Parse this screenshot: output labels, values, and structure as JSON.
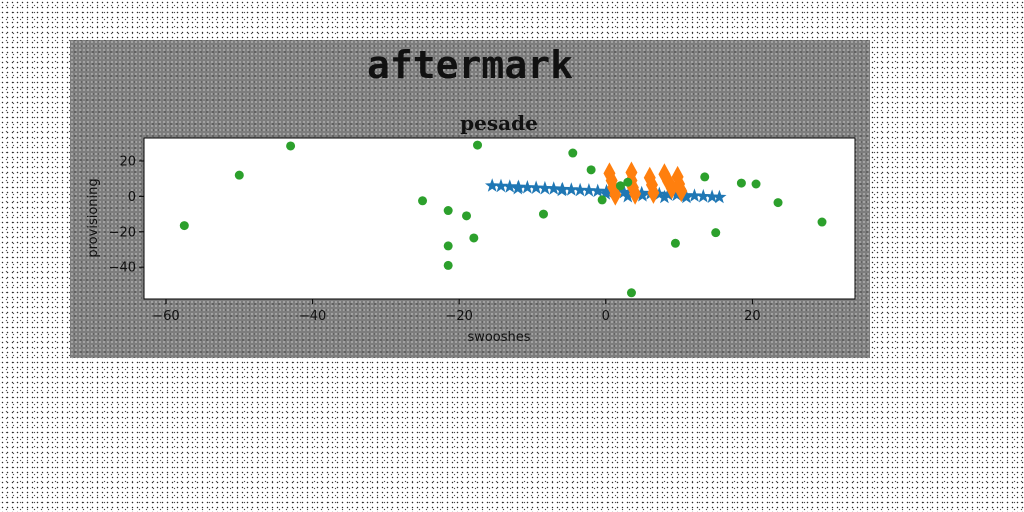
{
  "figure": {
    "suptitle": "aftermark"
  },
  "chart_data": {
    "type": "scatter",
    "title": "pesade",
    "xlabel": "swooshes",
    "ylabel": "provisioning",
    "xlim": [
      -63,
      34
    ],
    "ylim": [
      -58,
      33
    ],
    "xticks": [
      -60,
      -40,
      -20,
      0,
      20
    ],
    "yticks": [
      20,
      0,
      -20,
      -40
    ],
    "grid": false,
    "series": [
      {
        "marker": "star",
        "color": "#1f77b4",
        "points": [
          [
            -15.5,
            6.0
          ],
          [
            -14.3,
            5.8
          ],
          [
            -13.1,
            5.5
          ],
          [
            -11.9,
            5.3
          ],
          [
            -10.7,
            5.0
          ],
          [
            -9.5,
            4.8
          ],
          [
            -8.3,
            4.5
          ],
          [
            -7.1,
            4.3
          ],
          [
            -5.9,
            4.0
          ],
          [
            -4.7,
            3.8
          ],
          [
            -3.5,
            3.5
          ],
          [
            -2.3,
            3.3
          ],
          [
            -1.1,
            3.0
          ],
          [
            0.1,
            2.8
          ],
          [
            1.3,
            2.5
          ],
          [
            2.5,
            2.3
          ],
          [
            3.7,
            2.0
          ],
          [
            4.9,
            1.8
          ],
          [
            6.1,
            1.5
          ],
          [
            7.3,
            1.3
          ],
          [
            8.5,
            1.0
          ],
          [
            9.7,
            0.8
          ],
          [
            10.9,
            0.5
          ],
          [
            12.1,
            0.3
          ],
          [
            13.3,
            0.0
          ],
          [
            14.5,
            -0.3
          ],
          [
            15.5,
            -0.5
          ],
          [
            -6.0,
            3.5
          ],
          [
            0.0,
            1.5
          ],
          [
            5.0,
            0.5
          ],
          [
            11.0,
            -0.5
          ],
          [
            -12.0,
            4.5
          ],
          [
            3.0,
            0.0
          ],
          [
            8.0,
            -0.5
          ]
        ]
      },
      {
        "marker": "diamond",
        "color": "#ff7f0e",
        "points": [
          [
            0.5,
            13.0
          ],
          [
            0.8,
            9.0
          ],
          [
            1.0,
            5.0
          ],
          [
            1.3,
            1.0
          ],
          [
            3.5,
            13.5
          ],
          [
            3.5,
            9.0
          ],
          [
            3.7,
            5.0
          ],
          [
            4.0,
            1.5
          ],
          [
            6.0,
            10.5
          ],
          [
            6.3,
            6.5
          ],
          [
            6.5,
            2.0
          ],
          [
            8.0,
            12.5
          ],
          [
            8.5,
            8.5
          ],
          [
            9.0,
            4.5
          ],
          [
            9.8,
            11.0
          ],
          [
            10.0,
            7.0
          ],
          [
            10.3,
            3.0
          ]
        ]
      },
      {
        "marker": "circle",
        "color": "#2ca02c",
        "points": [
          [
            -57.5,
            -16.5
          ],
          [
            -50.0,
            12.0
          ],
          [
            -43.0,
            28.5
          ],
          [
            -25.0,
            -2.5
          ],
          [
            -21.5,
            -8.0
          ],
          [
            -21.5,
            -28.0
          ],
          [
            -21.5,
            -39.0
          ],
          [
            -19.0,
            -11.0
          ],
          [
            -18.0,
            -23.5
          ],
          [
            -17.5,
            29.0
          ],
          [
            -8.5,
            -10.0
          ],
          [
            -4.5,
            24.5
          ],
          [
            -2.0,
            15.0
          ],
          [
            -0.5,
            -2.0
          ],
          [
            2.0,
            6.0
          ],
          [
            3.0,
            8.0
          ],
          [
            3.5,
            -54.5
          ],
          [
            9.5,
            -26.5
          ],
          [
            13.5,
            11.0
          ],
          [
            15.0,
            -20.5
          ],
          [
            18.5,
            7.5
          ],
          [
            20.5,
            7.0
          ],
          [
            23.5,
            -3.5
          ],
          [
            29.5,
            -14.5
          ]
        ]
      }
    ]
  }
}
